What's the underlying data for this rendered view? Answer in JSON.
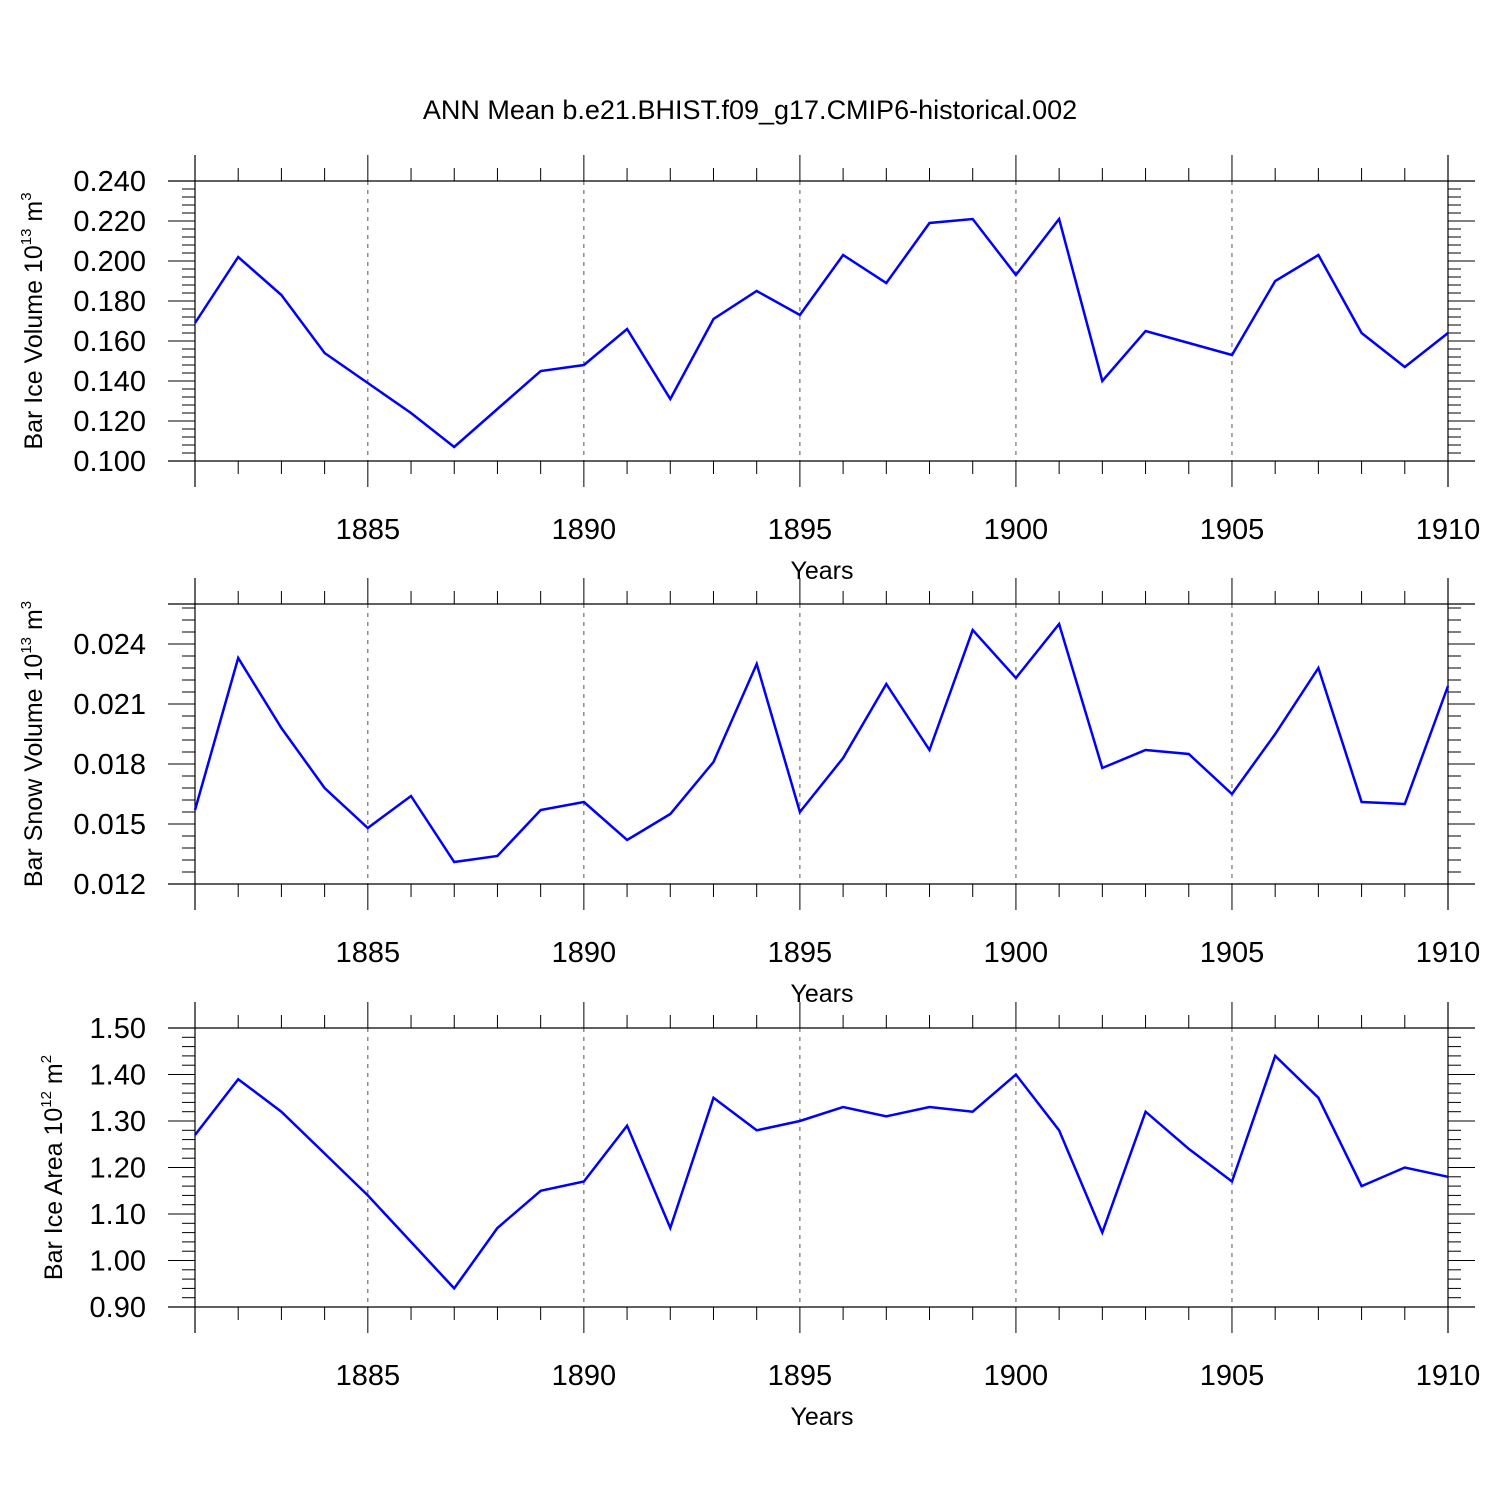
{
  "title": "ANN Mean b.e21.BHIST.f09_g17.CMIP6-historical.002",
  "colors": {
    "series": "#0000ff",
    "axis": "#000000",
    "grid": "#555555"
  },
  "chart_data": [
    {
      "type": "line",
      "ylabel": {
        "main": "Bar Ice Volume 10",
        "exp": "13",
        "unit": " m",
        "unit_exp": "3"
      },
      "xlabel": "Years",
      "xlim": [
        1881,
        1910
      ],
      "ylim": [
        0.1,
        0.24
      ],
      "yticks": [
        "0.100",
        "0.120",
        "0.140",
        "0.160",
        "0.180",
        "0.200",
        "0.220",
        "0.240"
      ],
      "ytick_values": [
        0.1,
        0.12,
        0.14,
        0.16,
        0.18,
        0.2,
        0.22,
        0.24
      ],
      "xtick_labels": [
        "1885",
        "1890",
        "1895",
        "1900",
        "1905",
        "1910"
      ],
      "xtick_values": [
        1885,
        1890,
        1895,
        1900,
        1905,
        1910
      ],
      "grid": "vertical dashed at major x ticks",
      "x": [
        1881,
        1882,
        1883,
        1884,
        1885,
        1886,
        1887,
        1888,
        1889,
        1890,
        1891,
        1892,
        1893,
        1894,
        1895,
        1896,
        1897,
        1898,
        1899,
        1900,
        1901,
        1902,
        1903,
        1904,
        1905,
        1906,
        1907,
        1908,
        1909,
        1910
      ],
      "series": [
        {
          "values": [
            0.169,
            0.202,
            0.183,
            0.154,
            0.139,
            0.124,
            0.107,
            0.126,
            0.145,
            0.148,
            0.166,
            0.131,
            0.171,
            0.185,
            0.173,
            0.203,
            0.189,
            0.219,
            0.221,
            0.193,
            0.221,
            0.14,
            0.165,
            0.159,
            0.153,
            0.19,
            0.203,
            0.164,
            0.147,
            0.164
          ]
        }
      ]
    },
    {
      "type": "line",
      "ylabel": {
        "main": "Bar Snow Volume 10",
        "exp": "13",
        "unit": " m",
        "unit_exp": "3"
      },
      "xlabel": "Years",
      "xlim": [
        1881,
        1910
      ],
      "ylim": [
        0.012,
        0.026
      ],
      "yticks": [
        "0.012",
        "0.015",
        "0.018",
        "0.021",
        "0.024"
      ],
      "ytick_values": [
        0.012,
        0.015,
        0.018,
        0.021,
        0.024
      ],
      "xtick_labels": [
        "1885",
        "1890",
        "1895",
        "1900",
        "1905",
        "1910"
      ],
      "xtick_values": [
        1885,
        1890,
        1895,
        1900,
        1905,
        1910
      ],
      "grid": "vertical dashed at major x ticks",
      "x": [
        1881,
        1882,
        1883,
        1884,
        1885,
        1886,
        1887,
        1888,
        1889,
        1890,
        1891,
        1892,
        1893,
        1894,
        1895,
        1896,
        1897,
        1898,
        1899,
        1900,
        1901,
        1902,
        1903,
        1904,
        1905,
        1906,
        1907,
        1908,
        1909,
        1910
      ],
      "series": [
        {
          "values": [
            0.0157,
            0.0233,
            0.0198,
            0.0168,
            0.0148,
            0.0164,
            0.0131,
            0.0134,
            0.0157,
            0.0161,
            0.0142,
            0.0155,
            0.0181,
            0.023,
            0.0156,
            0.0183,
            0.022,
            0.0187,
            0.0247,
            0.0223,
            0.025,
            0.0178,
            0.0187,
            0.0185,
            0.0165,
            0.0195,
            0.0228,
            0.0161,
            0.016,
            0.0219
          ]
        }
      ]
    },
    {
      "type": "line",
      "ylabel": {
        "main": "Bar Ice Area 10",
        "exp": "12",
        "unit": " m",
        "unit_exp": "2"
      },
      "xlabel": "Years",
      "xlim": [
        1881,
        1910
      ],
      "ylim": [
        0.9,
        1.5
      ],
      "yticks": [
        "0.90",
        "1.00",
        "1.10",
        "1.20",
        "1.30",
        "1.40",
        "1.50"
      ],
      "ytick_values": [
        0.9,
        1.0,
        1.1,
        1.2,
        1.3,
        1.4,
        1.5
      ],
      "xtick_labels": [
        "1885",
        "1890",
        "1895",
        "1900",
        "1905",
        "1910"
      ],
      "xtick_values": [
        1885,
        1890,
        1895,
        1900,
        1905,
        1910
      ],
      "grid": "vertical dashed at major x ticks",
      "x": [
        1881,
        1882,
        1883,
        1884,
        1885,
        1886,
        1887,
        1888,
        1889,
        1890,
        1891,
        1892,
        1893,
        1894,
        1895,
        1896,
        1897,
        1898,
        1899,
        1900,
        1901,
        1902,
        1903,
        1904,
        1905,
        1906,
        1907,
        1908,
        1909,
        1910
      ],
      "series": [
        {
          "values": [
            1.27,
            1.39,
            1.32,
            1.23,
            1.14,
            1.04,
            0.94,
            1.07,
            1.15,
            1.17,
            1.29,
            1.07,
            1.35,
            1.28,
            1.3,
            1.33,
            1.31,
            1.33,
            1.32,
            1.4,
            1.28,
            1.06,
            1.32,
            1.24,
            1.17,
            1.44,
            1.35,
            1.16,
            1.2,
            1.18
          ]
        }
      ]
    }
  ]
}
